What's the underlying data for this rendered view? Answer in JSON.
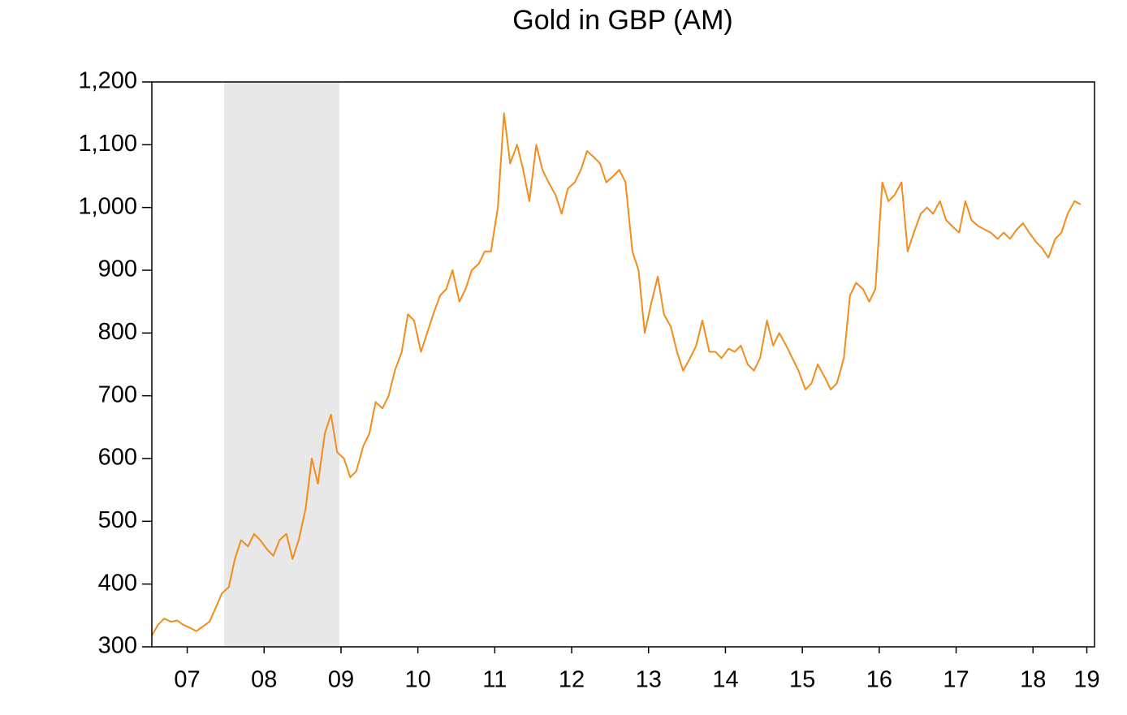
{
  "chart_data": {
    "type": "line",
    "title": "Gold in GBP (AM)",
    "x": [
      7.04,
      7.12,
      7.2,
      7.29,
      7.37,
      7.45,
      7.54,
      7.62,
      7.7,
      7.79,
      7.87,
      7.95,
      8.04,
      8.12,
      8.2,
      8.29,
      8.37,
      8.45,
      8.54,
      8.62,
      8.7,
      8.79,
      8.87,
      8.95,
      9.04,
      9.12,
      9.2,
      9.29,
      9.37,
      9.45,
      9.54,
      9.62,
      9.7,
      9.79,
      9.87,
      9.95,
      10.04,
      10.12,
      10.2,
      10.29,
      10.37,
      10.45,
      10.54,
      10.62,
      10.7,
      10.79,
      10.87,
      10.95,
      11.04,
      11.12,
      11.2,
      11.29,
      11.37,
      11.45,
      11.54,
      11.62,
      11.7,
      11.79,
      11.87,
      11.95,
      12.04,
      12.12,
      12.2,
      12.29,
      12.37,
      12.45,
      12.54,
      12.62,
      12.7,
      12.79,
      12.87,
      12.95,
      13.04,
      13.12,
      13.2,
      13.29,
      13.37,
      13.45,
      13.54,
      13.62,
      13.7,
      13.79,
      13.87,
      13.95,
      14.04,
      14.12,
      14.2,
      14.29,
      14.37,
      14.45,
      14.54,
      14.62,
      14.7,
      14.79,
      14.87,
      14.95,
      15.04,
      15.12,
      15.2,
      15.29,
      15.37,
      15.45,
      15.54,
      15.62,
      15.7,
      15.79,
      15.87,
      15.95,
      16.04,
      16.12,
      16.2,
      16.29,
      16.37,
      16.45,
      16.54,
      16.62,
      16.7,
      16.79,
      16.87,
      16.95,
      17.04,
      17.12,
      17.2,
      17.29,
      17.37,
      17.45,
      17.54,
      17.62,
      17.7,
      17.79,
      17.87,
      17.95,
      18.04,
      18.12,
      18.2,
      18.29,
      18.37,
      18.45,
      18.54,
      18.62,
      18.7,
      18.79,
      18.87,
      18.95,
      19.04,
      19.12
    ],
    "series": [
      {
        "color": "#f28c1a",
        "values": [
          318,
          335,
          345,
          340,
          342,
          335,
          330,
          325,
          332,
          340,
          362,
          385,
          395,
          440,
          470,
          460,
          480,
          470,
          455,
          445,
          470,
          480,
          440,
          470,
          520,
          600,
          560,
          640,
          670,
          610,
          600,
          570,
          580,
          620,
          640,
          690,
          680,
          700,
          740,
          770,
          830,
          820,
          770,
          800,
          830,
          860,
          870,
          900,
          850,
          870,
          900,
          910,
          930,
          930,
          1000,
          1150,
          1070,
          1100,
          1060,
          1010,
          1100,
          1060,
          1040,
          1020,
          990,
          1030,
          1040,
          1060,
          1090,
          1080,
          1070,
          1040,
          1050,
          1060,
          1040,
          930,
          900,
          800,
          850,
          890,
          830,
          810,
          770,
          740,
          760,
          780,
          820,
          770,
          770,
          760,
          775,
          770,
          780,
          750,
          740,
          760,
          820,
          780,
          800,
          780,
          760,
          740,
          710,
          720,
          750,
          730,
          710,
          720,
          760,
          860,
          880,
          870,
          850,
          870,
          1040,
          1010,
          1020,
          1040,
          930,
          960,
          990,
          1000,
          990,
          1010,
          980,
          970,
          960,
          1010,
          980,
          970,
          965,
          960,
          950,
          960,
          950,
          965,
          975,
          960,
          945,
          935,
          920,
          950,
          960,
          990,
          1010,
          1005
        ]
      }
    ],
    "shade_x": [
      7.98,
      9.48
    ],
    "shade_color": "#e8e8e8",
    "xlim": [
      7.04,
      19.3
    ],
    "xticks": [
      {
        "value": 7.5,
        "label": "07"
      },
      {
        "value": 8.5,
        "label": "08"
      },
      {
        "value": 9.5,
        "label": "09"
      },
      {
        "value": 10.5,
        "label": "10"
      },
      {
        "value": 11.5,
        "label": "11"
      },
      {
        "value": 12.5,
        "label": "12"
      },
      {
        "value": 13.5,
        "label": "13"
      },
      {
        "value": 14.5,
        "label": "14"
      },
      {
        "value": 15.5,
        "label": "15"
      },
      {
        "value": 16.5,
        "label": "16"
      },
      {
        "value": 17.5,
        "label": "17"
      },
      {
        "value": 18.5,
        "label": "18"
      },
      {
        "value": 19.2,
        "label": "19"
      }
    ],
    "ylim": [
      300,
      1200
    ],
    "yticks": [
      300,
      400,
      500,
      600,
      700,
      800,
      900,
      {
        "value": 1000,
        "label": "1,000"
      },
      {
        "value": 1100,
        "label": "1,100"
      },
      {
        "value": 1200,
        "label": "1,200"
      }
    ],
    "grid": false
  }
}
